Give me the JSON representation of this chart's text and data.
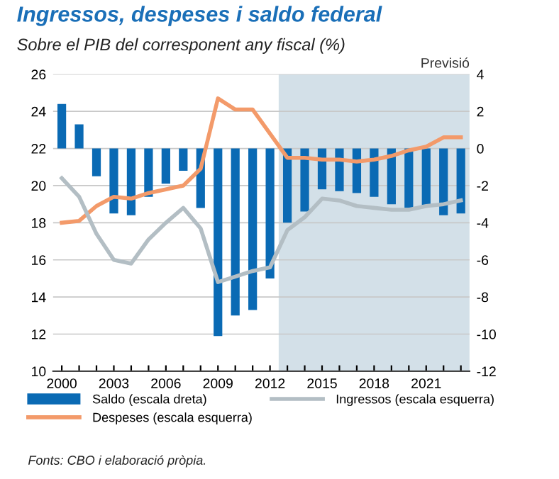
{
  "chart_data": {
    "type": "bar",
    "title": "Ingressos, despeses i saldo federal",
    "subtitle": "Sobre el PIB del corresponent any fiscal (%)",
    "x": [
      2000,
      2001,
      2002,
      2003,
      2004,
      2005,
      2006,
      2007,
      2008,
      2009,
      2010,
      2011,
      2012,
      2013,
      2014,
      2015,
      2016,
      2017,
      2018,
      2019,
      2020,
      2021,
      2022,
      2023
    ],
    "series": [
      {
        "name": "Saldo (escala dreta)",
        "axis": "y2",
        "color": "#0a6ab4",
        "values": [
          2.4,
          1.3,
          -1.5,
          -3.5,
          -3.6,
          -2.6,
          -1.9,
          -1.2,
          -3.2,
          -10.1,
          -9.0,
          -8.7,
          -7.0,
          -4.0,
          -3.4,
          -2.2,
          -2.3,
          -2.4,
          -2.6,
          -3.0,
          -3.2,
          -3.1,
          -3.6,
          -3.5
        ]
      },
      {
        "name": "Despeses (escala esquerra)",
        "type": "line",
        "color": "#f39a6a",
        "values": [
          18.0,
          18.1,
          18.9,
          19.4,
          19.3,
          19.6,
          19.8,
          20.0,
          20.9,
          24.7,
          24.1,
          24.1,
          22.8,
          21.5,
          21.5,
          21.4,
          21.4,
          21.3,
          21.4,
          21.6,
          21.9,
          22.1,
          22.6,
          22.6
        ]
      },
      {
        "name": "Ingressos (escala esquerra)",
        "type": "line",
        "color": "#b3bec4",
        "values": [
          20.4,
          19.4,
          17.4,
          16.0,
          15.8,
          17.1,
          18.0,
          18.8,
          17.7,
          14.8,
          15.1,
          15.4,
          15.6,
          17.6,
          18.3,
          19.3,
          19.2,
          18.9,
          18.8,
          18.7,
          18.7,
          18.9,
          19.0,
          19.2
        ]
      }
    ],
    "xlim": [
      1999.5,
      2023.5
    ],
    "xticks": [
      2000,
      {
        "value": 2001,
        "label": null
      },
      {
        "value": 2002,
        "label": null
      },
      2003,
      {
        "value": 2004,
        "label": null
      },
      {
        "value": 2005,
        "label": null
      },
      2006,
      {
        "value": 2007,
        "label": null
      },
      {
        "value": 2008,
        "label": null
      },
      2009,
      {
        "value": 2010,
        "label": null
      },
      {
        "value": 2011,
        "label": null
      },
      2012,
      {
        "value": 2013,
        "label": null
      },
      {
        "value": 2014,
        "label": null
      },
      2015,
      {
        "value": 2016,
        "label": null
      },
      {
        "value": 2017,
        "label": null
      },
      2018,
      {
        "value": 2019,
        "label": null
      },
      {
        "value": 2020,
        "label": null
      },
      2021,
      {
        "value": 2022,
        "label": null
      },
      {
        "value": 2023,
        "label": null
      }
    ],
    "ylim": [
      10,
      26
    ],
    "yticks": [
      10,
      12,
      14,
      16,
      18,
      20,
      22,
      24,
      26
    ],
    "y2lim": [
      -12,
      4
    ],
    "y2ticks": [
      -12,
      -10,
      -8,
      -6,
      -4,
      -2,
      0,
      2,
      4
    ],
    "bands": [
      {
        "axis": "x",
        "from": 2012.5,
        "to": 2023.5,
        "label": "Previsió",
        "color": "#d3e0e8"
      }
    ],
    "grid": "y",
    "legend": "bottom",
    "marker": "none",
    "line_style": "solid",
    "annotations": [
      "Fonts: CBO i elaboració pròpia."
    ]
  }
}
